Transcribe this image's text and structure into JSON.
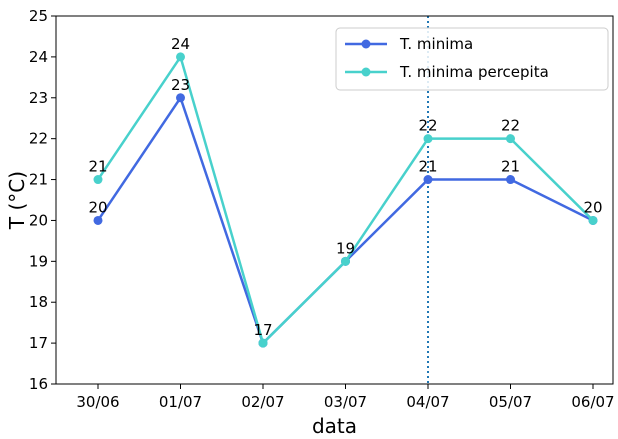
{
  "chart_data": {
    "type": "line",
    "title": "",
    "xlabel": "data",
    "ylabel": "T (°C)",
    "categories": [
      "30/06",
      "01/07",
      "02/07",
      "03/07",
      "04/07",
      "05/07",
      "06/07"
    ],
    "ylim": [
      16,
      25
    ],
    "yticks": [
      16,
      17,
      18,
      19,
      20,
      21,
      22,
      23,
      24,
      25
    ],
    "grid": false,
    "legend_position": "top-right",
    "vertical_marker": {
      "category": "04/07",
      "style": "dotted",
      "color": "#1f77b4"
    },
    "series": [
      {
        "name": "T. minima",
        "color": "#4169e1",
        "values": [
          20,
          23,
          17,
          19,
          21,
          21,
          20
        ]
      },
      {
        "name": "T. minima percepita",
        "color": "#48d1cc",
        "values": [
          21,
          24,
          17,
          19,
          22,
          22,
          20
        ]
      }
    ]
  }
}
